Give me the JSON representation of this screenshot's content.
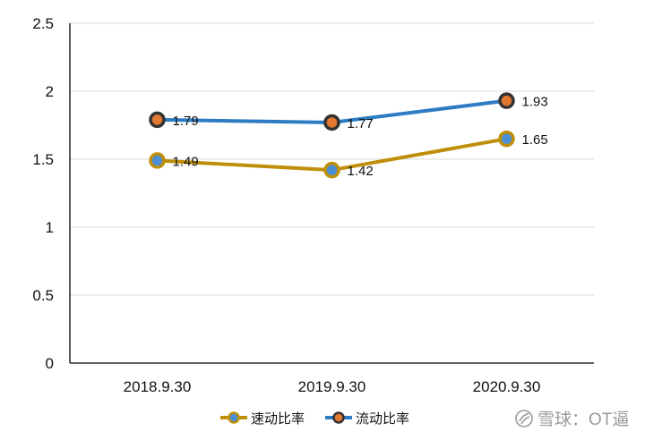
{
  "chart_data": {
    "type": "line",
    "title": "",
    "xlabel": "",
    "ylabel": "",
    "categories": [
      "2018.9.30",
      "2019.9.30",
      "2020.9.30"
    ],
    "ylim": [
      0,
      2.5
    ],
    "yticks": [
      0,
      0.5,
      1,
      1.5,
      2,
      2.5
    ],
    "ytick_labels": [
      "0",
      "0.5",
      "1",
      "1.5",
      "2",
      "2.5"
    ],
    "grid": true,
    "legend_position": "bottom",
    "series": [
      {
        "name": "速动比率",
        "values": [
          1.49,
          1.42,
          1.65
        ],
        "labels": [
          "1.49",
          "1.42",
          "1.65"
        ],
        "line_color": "#c08f0a",
        "marker_fill": "#4a8fd4",
        "marker_edge": "#c08f0a"
      },
      {
        "name": "流动比率",
        "values": [
          1.79,
          1.77,
          1.93
        ],
        "labels": [
          "1.79",
          "1.77",
          "1.93"
        ],
        "line_color": "#2e7cc4",
        "marker_fill": "#e2772f",
        "marker_edge": "#333333"
      }
    ]
  },
  "watermark": {
    "text": "雪球：OT逼",
    "icon": "snowball-logo-icon"
  }
}
